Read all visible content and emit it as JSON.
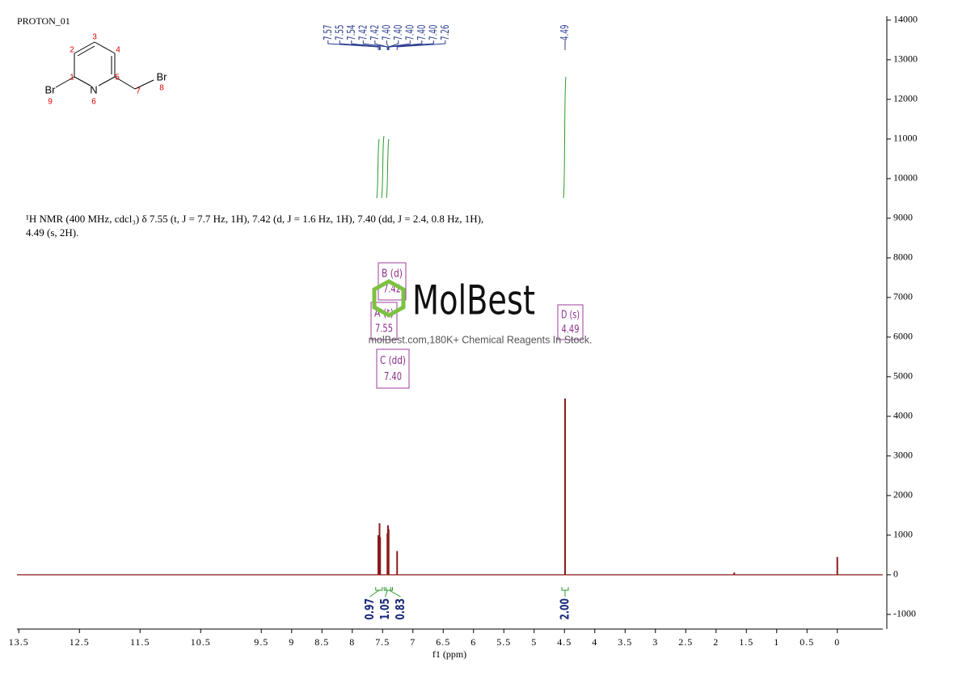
{
  "chart_data": {
    "type": "nmr",
    "title": "PROTON_01",
    "xlabel": "f1 (ppm)",
    "description": "¹H NMR (400 MHz, cdcl₃) δ 7.55 (t, J = 7.7 Hz, 1H), 7.42 (d, J = 1.6 Hz, 1H), 7.40 (dd, J = 2.4, 0.8 Hz, 1H), 4.49 (s, 2H).",
    "watermark": {
      "logo": "MolBest",
      "text": "molBest.com,180K+ Chemical Reagents In Stock."
    },
    "structure": {
      "atoms": [
        "Br",
        "N",
        "Br"
      ],
      "numbers": [
        1,
        2,
        3,
        4,
        5,
        6,
        7,
        8,
        9
      ]
    },
    "xlim": [
      13.53,
      -0.75
    ],
    "xticks": [
      13.5,
      12.5,
      11.5,
      10.5,
      9.5,
      9.0,
      8.5,
      8.0,
      7.5,
      7.0,
      6.5,
      6.0,
      5.5,
      5.0,
      4.5,
      4.0,
      3.5,
      3.0,
      2.5,
      2.0,
      1.5,
      1.0,
      0.5,
      0.0
    ],
    "ylim": [
      -1370,
      14100
    ],
    "yticks": [
      -1000,
      0,
      1000,
      2000,
      3000,
      4000,
      5000,
      6000,
      7000,
      8000,
      9000,
      10000,
      11000,
      12000,
      13000,
      14000
    ],
    "color": "#8b1a1a",
    "peaks": {
      "x": [
        7.57,
        7.55,
        7.54,
        7.42,
        7.41,
        7.4,
        7.26,
        4.49,
        1.7,
        0.0
      ],
      "values": [
        1000,
        1300,
        950,
        1050,
        1250,
        1150,
        600,
        4450,
        60,
        450
      ]
    },
    "peak_labels": [
      {
        "value": 7.57,
        "label": "7.57"
      },
      {
        "value": 7.55,
        "label": "7.55"
      },
      {
        "value": 7.54,
        "label": "7.54"
      },
      {
        "value": 7.42,
        "label": "7.42"
      },
      {
        "value": 7.42,
        "label": "7.42"
      },
      {
        "value": 7.4,
        "label": "7.40"
      },
      {
        "value": 7.4,
        "label": "7.40"
      },
      {
        "value": 7.4,
        "label": "7.40"
      },
      {
        "value": 7.4,
        "label": "7.40"
      },
      {
        "value": 7.4,
        "label": "7.40"
      },
      {
        "value": 7.26,
        "label": "7.26"
      },
      {
        "value": 4.49,
        "label": "4.49"
      }
    ],
    "integrals": {
      "x": [
        7.56,
        7.42,
        7.39,
        4.49
      ],
      "values": [
        0.97,
        1.05,
        0.83,
        2.0
      ],
      "value_labels": [
        "0.97",
        "1.05",
        "0.83",
        "2.00"
      ]
    },
    "multiplets": [
      {
        "name": "B (d)",
        "shift": "7.42"
      },
      {
        "name": "A (t)",
        "shift": "7.55"
      },
      {
        "name": "C (dd)",
        "shift": "7.40"
      },
      {
        "name": "D (s)",
        "shift": "4.49"
      }
    ]
  }
}
